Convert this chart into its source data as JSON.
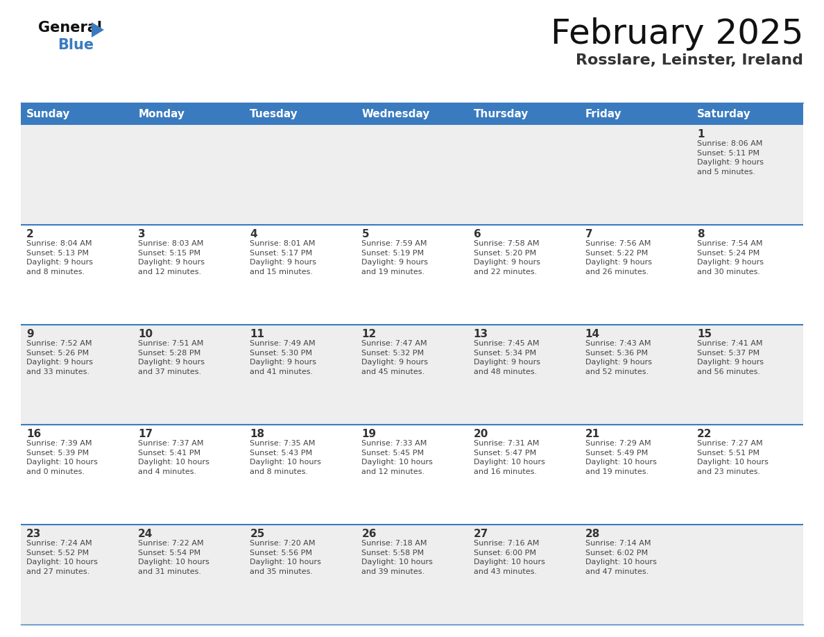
{
  "title": "February 2025",
  "subtitle": "Rosslare, Leinster, Ireland",
  "header_color": "#3a7bbf",
  "header_text_color": "#ffffff",
  "days_of_week": [
    "Sunday",
    "Monday",
    "Tuesday",
    "Wednesday",
    "Thursday",
    "Friday",
    "Saturday"
  ],
  "cell_bg_even": "#eeeeee",
  "cell_bg_odd": "#ffffff",
  "divider_color": "#3a7bbf",
  "day_num_color": "#333333",
  "text_color": "#444444",
  "calendar_data": [
    [
      {
        "day": null,
        "info": null
      },
      {
        "day": null,
        "info": null
      },
      {
        "day": null,
        "info": null
      },
      {
        "day": null,
        "info": null
      },
      {
        "day": null,
        "info": null
      },
      {
        "day": null,
        "info": null
      },
      {
        "day": 1,
        "info": "Sunrise: 8:06 AM\nSunset: 5:11 PM\nDaylight: 9 hours\nand 5 minutes."
      }
    ],
    [
      {
        "day": 2,
        "info": "Sunrise: 8:04 AM\nSunset: 5:13 PM\nDaylight: 9 hours\nand 8 minutes."
      },
      {
        "day": 3,
        "info": "Sunrise: 8:03 AM\nSunset: 5:15 PM\nDaylight: 9 hours\nand 12 minutes."
      },
      {
        "day": 4,
        "info": "Sunrise: 8:01 AM\nSunset: 5:17 PM\nDaylight: 9 hours\nand 15 minutes."
      },
      {
        "day": 5,
        "info": "Sunrise: 7:59 AM\nSunset: 5:19 PM\nDaylight: 9 hours\nand 19 minutes."
      },
      {
        "day": 6,
        "info": "Sunrise: 7:58 AM\nSunset: 5:20 PM\nDaylight: 9 hours\nand 22 minutes."
      },
      {
        "day": 7,
        "info": "Sunrise: 7:56 AM\nSunset: 5:22 PM\nDaylight: 9 hours\nand 26 minutes."
      },
      {
        "day": 8,
        "info": "Sunrise: 7:54 AM\nSunset: 5:24 PM\nDaylight: 9 hours\nand 30 minutes."
      }
    ],
    [
      {
        "day": 9,
        "info": "Sunrise: 7:52 AM\nSunset: 5:26 PM\nDaylight: 9 hours\nand 33 minutes."
      },
      {
        "day": 10,
        "info": "Sunrise: 7:51 AM\nSunset: 5:28 PM\nDaylight: 9 hours\nand 37 minutes."
      },
      {
        "day": 11,
        "info": "Sunrise: 7:49 AM\nSunset: 5:30 PM\nDaylight: 9 hours\nand 41 minutes."
      },
      {
        "day": 12,
        "info": "Sunrise: 7:47 AM\nSunset: 5:32 PM\nDaylight: 9 hours\nand 45 minutes."
      },
      {
        "day": 13,
        "info": "Sunrise: 7:45 AM\nSunset: 5:34 PM\nDaylight: 9 hours\nand 48 minutes."
      },
      {
        "day": 14,
        "info": "Sunrise: 7:43 AM\nSunset: 5:36 PM\nDaylight: 9 hours\nand 52 minutes."
      },
      {
        "day": 15,
        "info": "Sunrise: 7:41 AM\nSunset: 5:37 PM\nDaylight: 9 hours\nand 56 minutes."
      }
    ],
    [
      {
        "day": 16,
        "info": "Sunrise: 7:39 AM\nSunset: 5:39 PM\nDaylight: 10 hours\nand 0 minutes."
      },
      {
        "day": 17,
        "info": "Sunrise: 7:37 AM\nSunset: 5:41 PM\nDaylight: 10 hours\nand 4 minutes."
      },
      {
        "day": 18,
        "info": "Sunrise: 7:35 AM\nSunset: 5:43 PM\nDaylight: 10 hours\nand 8 minutes."
      },
      {
        "day": 19,
        "info": "Sunrise: 7:33 AM\nSunset: 5:45 PM\nDaylight: 10 hours\nand 12 minutes."
      },
      {
        "day": 20,
        "info": "Sunrise: 7:31 AM\nSunset: 5:47 PM\nDaylight: 10 hours\nand 16 minutes."
      },
      {
        "day": 21,
        "info": "Sunrise: 7:29 AM\nSunset: 5:49 PM\nDaylight: 10 hours\nand 19 minutes."
      },
      {
        "day": 22,
        "info": "Sunrise: 7:27 AM\nSunset: 5:51 PM\nDaylight: 10 hours\nand 23 minutes."
      }
    ],
    [
      {
        "day": 23,
        "info": "Sunrise: 7:24 AM\nSunset: 5:52 PM\nDaylight: 10 hours\nand 27 minutes."
      },
      {
        "day": 24,
        "info": "Sunrise: 7:22 AM\nSunset: 5:54 PM\nDaylight: 10 hours\nand 31 minutes."
      },
      {
        "day": 25,
        "info": "Sunrise: 7:20 AM\nSunset: 5:56 PM\nDaylight: 10 hours\nand 35 minutes."
      },
      {
        "day": 26,
        "info": "Sunrise: 7:18 AM\nSunset: 5:58 PM\nDaylight: 10 hours\nand 39 minutes."
      },
      {
        "day": 27,
        "info": "Sunrise: 7:16 AM\nSunset: 6:00 PM\nDaylight: 10 hours\nand 43 minutes."
      },
      {
        "day": 28,
        "info": "Sunrise: 7:14 AM\nSunset: 6:02 PM\nDaylight: 10 hours\nand 47 minutes."
      },
      {
        "day": null,
        "info": null
      }
    ]
  ]
}
